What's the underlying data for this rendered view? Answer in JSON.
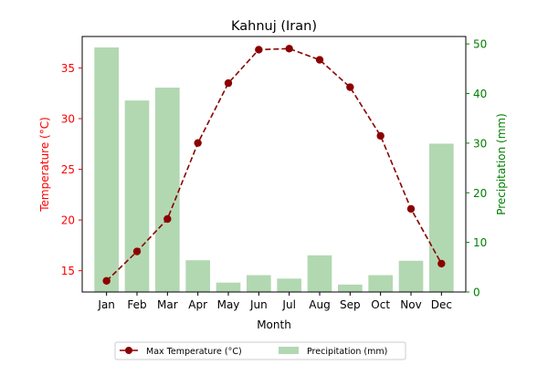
{
  "chart_data": {
    "type": "bar+line",
    "title": "Kahnuj (Iran)",
    "xlabel": "Month",
    "categories": [
      "Jan",
      "Feb",
      "Mar",
      "Apr",
      "May",
      "Jun",
      "Jul",
      "Aug",
      "Sep",
      "Oct",
      "Nov",
      "Dec"
    ],
    "left_axis": {
      "label": "Temperature (°C)",
      "color": "#ff0000",
      "ylim": [
        12.9,
        38.1
      ],
      "ticks": [
        15,
        20,
        25,
        30,
        35
      ]
    },
    "right_axis": {
      "label": "Precipitation (mm)",
      "color": "#008000",
      "ylim": [
        0,
        51.5
      ],
      "ticks": [
        0,
        10,
        20,
        30,
        40,
        50
      ]
    },
    "series": [
      {
        "name": "Max Temperature (°C)",
        "type": "line",
        "axis": "left",
        "color": "#8b0000",
        "style": "dashed",
        "marker": "circle",
        "values": [
          14.0,
          16.9,
          20.1,
          27.6,
          33.5,
          36.8,
          36.9,
          35.8,
          33.1,
          28.3,
          21.1,
          15.7
        ]
      },
      {
        "name": "Precipitation (mm)",
        "type": "bar",
        "axis": "right",
        "color": "#b2d8b2",
        "values": [
          49.3,
          38.6,
          41.2,
          6.4,
          1.9,
          3.4,
          2.7,
          7.4,
          1.5,
          3.4,
          6.3,
          29.9
        ]
      }
    ],
    "legend": {
      "placement": "bottom-center"
    }
  }
}
